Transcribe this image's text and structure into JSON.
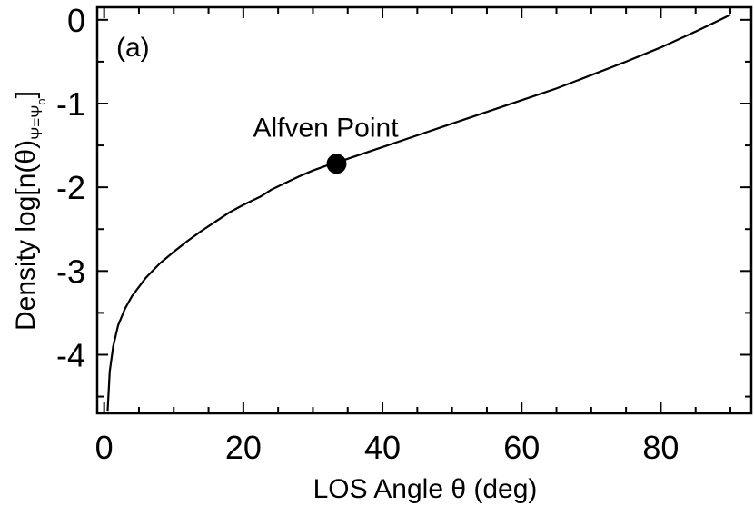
{
  "chart_data": {
    "type": "line",
    "panel_label": "(a)",
    "xlabel": "LOS Angle θ (deg)",
    "ylabel": {
      "main": "Density log[n(θ)",
      "subscript": "Ψ=Ψ",
      "subscript_sub": "o",
      "close": "]"
    },
    "xlim": [
      -1,
      93
    ],
    "ylim": [
      -4.7,
      0.15
    ],
    "xticks": [
      0,
      20,
      40,
      60,
      80
    ],
    "xtick_labels": [
      "0",
      "20",
      "40",
      "60",
      "80"
    ],
    "yticks": [
      0,
      -1,
      -2,
      -3,
      -4
    ],
    "ytick_labels": [
      "0",
      "-1",
      "-2",
      "-3",
      "-4"
    ],
    "minor_x_step": 5,
    "minor_y_step": 0.5,
    "grid": false,
    "series": [
      {
        "name": "density",
        "x": [
          0.5,
          0.8,
          1.3,
          2,
          3,
          4,
          6,
          8,
          10,
          12,
          14,
          16,
          18,
          20,
          22,
          22.5,
          24,
          26,
          28,
          30,
          32,
          33.4,
          35,
          40,
          45,
          50,
          55,
          60,
          65,
          70,
          75,
          80,
          85,
          88,
          90
        ],
        "y": [
          -4.67,
          -4.2,
          -3.9,
          -3.65,
          -3.45,
          -3.3,
          -3.08,
          -2.91,
          -2.77,
          -2.64,
          -2.52,
          -2.41,
          -2.3,
          -2.21,
          -2.13,
          -2.11,
          -2.03,
          -1.95,
          -1.87,
          -1.8,
          -1.74,
          -1.71,
          -1.66,
          -1.52,
          -1.38,
          -1.24,
          -1.1,
          -0.96,
          -0.82,
          -0.66,
          -0.5,
          -0.33,
          -0.14,
          -0.02,
          0.06
        ]
      }
    ],
    "annotations": [
      {
        "label": "Alfven Point",
        "x": 33.4,
        "y": -1.72
      }
    ]
  }
}
